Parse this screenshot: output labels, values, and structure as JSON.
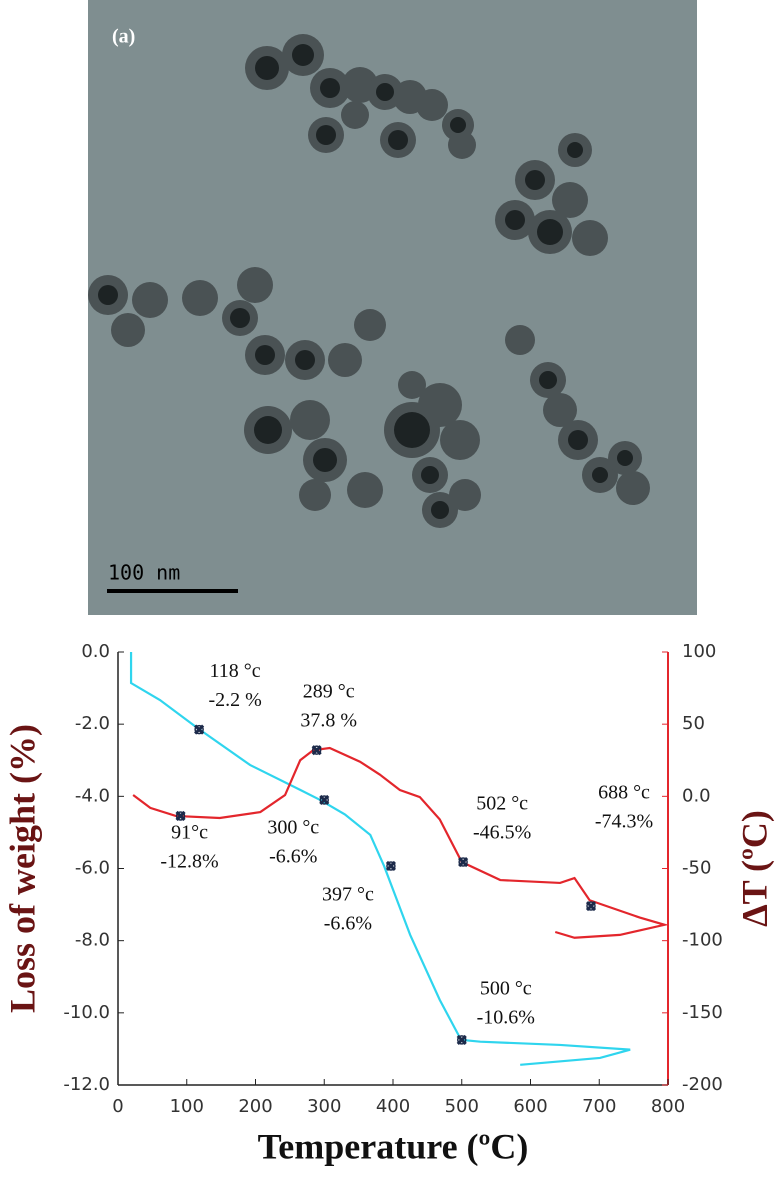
{
  "image": {
    "label": "(a)",
    "scale_bar": "100 nm"
  },
  "chart_data": {
    "type": "line",
    "x_label": "Temperature (ºC)",
    "y_label": "Loss of weight (%)",
    "y2_label": "ΔT (ºC)",
    "xlim": [
      0,
      800
    ],
    "xticks": [
      0,
      100,
      200,
      300,
      400,
      500,
      600,
      700,
      800
    ],
    "ylim": [
      -12,
      0
    ],
    "yticks": [
      {
        "value": 0,
        "label": "0.0"
      },
      {
        "value": -2,
        "label": "-2.0"
      },
      {
        "value": -4,
        "label": "-4.0"
      },
      {
        "value": -6,
        "label": "-6.0"
      },
      {
        "value": -8,
        "label": "-8.0"
      },
      {
        "value": -10,
        "label": "-10.0"
      },
      {
        "value": -12,
        "label": "-12.0"
      }
    ],
    "y2lim": [
      -200,
      100
    ],
    "y2ticks": [
      100,
      50,
      {
        "value": 0,
        "label": "0.0"
      },
      -50,
      -100,
      -150,
      -200
    ],
    "series": [
      {
        "color": "#2fd5ee",
        "axis": "y",
        "x": [
          19,
          19,
          61,
          115,
          192,
          265,
          294,
          330,
          367,
          387,
          425,
          468,
          499,
          527,
          643,
          745,
          701,
          585
        ],
        "values": [
          0,
          -0.86,
          -1.33,
          -2.1,
          -3.13,
          -3.82,
          -4.1,
          -4.5,
          -5.07,
          -5.93,
          -7.84,
          -9.64,
          -10.75,
          -10.8,
          -10.89,
          -11.02,
          -11.25,
          -11.44
        ]
      },
      {
        "color": "#e3262c",
        "axis": "y2",
        "x": [
          22,
          47,
          84,
          148,
          207,
          243,
          265,
          284,
          308,
          352,
          381,
          410,
          439,
          468,
          500,
          556,
          643,
          664,
          686,
          759,
          795,
          730,
          664,
          636
        ],
        "values": [
          0.9,
          -8,
          -13.6,
          -15,
          -10.9,
          0.9,
          25,
          32,
          33.5,
          24,
          15,
          4.4,
          -0.5,
          -16,
          -45.5,
          -58,
          -60,
          -56.6,
          -72,
          -84,
          -89,
          -96,
          -98,
          -94
        ]
      }
    ],
    "annotations": [
      {
        "x": 118,
        "y": -2.15,
        "axis": "y",
        "label": "118 °c",
        "text": "-2.2 %"
      },
      {
        "x": 91,
        "y": -13.6,
        "axis": "y2",
        "label": "91°c",
        "text": "-12.8%"
      },
      {
        "x": 289,
        "y": 32,
        "axis": "y2",
        "label": "289 °c",
        "text": "37.8 %"
      },
      {
        "x": 300,
        "y": -4.1,
        "axis": "y",
        "label": "300 °c",
        "text": "-6.6%"
      },
      {
        "x": 397,
        "y": -5.93,
        "axis": "y",
        "label": "397 °c",
        "text": "-6.6%"
      },
      {
        "x": 500,
        "y": -10.75,
        "axis": "y",
        "label": "500 °c",
        "text": "-10.6%"
      },
      {
        "x": 502,
        "y": -45.5,
        "axis": "y2",
        "label": "502 °c",
        "text": "-46.5%"
      },
      {
        "x": 688,
        "y": -76,
        "axis": "y2",
        "label": "688 °c",
        "text": "-74.3%"
      }
    ]
  }
}
